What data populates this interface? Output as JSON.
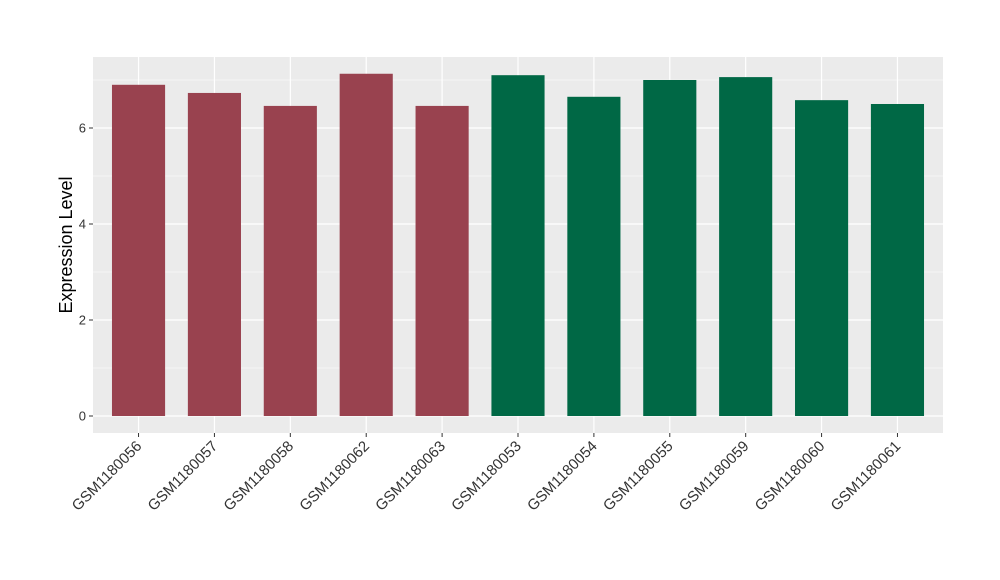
{
  "chart_data": {
    "type": "bar",
    "y_label": "Expression Level",
    "categories": [
      "GSM1180056",
      "GSM1180057",
      "GSM1180058",
      "GSM1180062",
      "GSM1180063",
      "GSM1180053",
      "GSM1180054",
      "GSM1180055",
      "GSM1180059",
      "GSM1180060",
      "GSM1180061"
    ],
    "values": [
      6.9,
      6.73,
      6.46,
      7.13,
      6.46,
      7.1,
      6.65,
      7.0,
      7.06,
      6.58,
      6.5
    ],
    "colors": [
      "#99424f",
      "#99424f",
      "#99424f",
      "#99424f",
      "#99424f",
      "#006845",
      "#006845",
      "#006845",
      "#006845",
      "#006845",
      "#006845"
    ],
    "ylim": [
      -0.354,
      7.479
    ],
    "yticks": [
      0,
      2,
      4,
      6
    ],
    "minor_yticks": [
      1,
      3,
      5,
      7
    ],
    "grid": true
  }
}
